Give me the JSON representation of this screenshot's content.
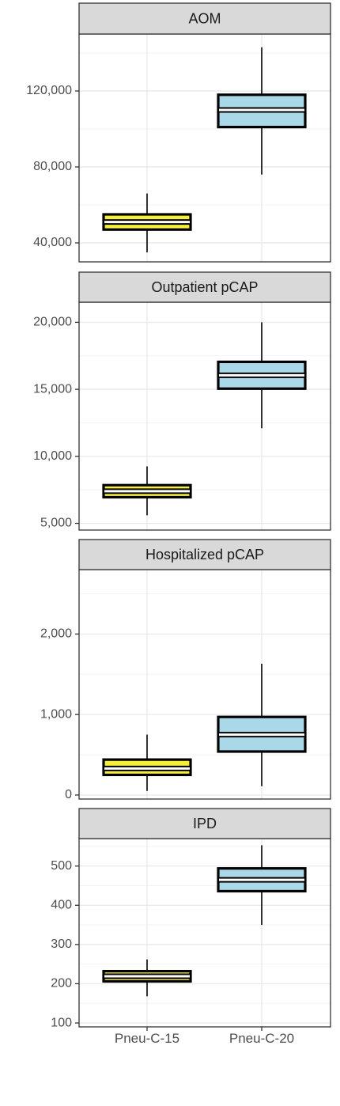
{
  "chart_data": {
    "type": "box",
    "x_categories": [
      "Pneu-C-15",
      "Pneu-C-20"
    ],
    "colors": {
      "Pneu-C-15": "#f5ef3a",
      "Pneu-C-20": "#a9d8e8",
      "outline": "#000000",
      "median": "#ffffff",
      "strip_fill": "#d9d9d9",
      "grid_major": "#ebebeb",
      "grid_minor": "#f3f3f3",
      "panel_border": "#333333"
    },
    "grid": true,
    "legend": "none",
    "facets": [
      {
        "title": "AOM",
        "ylim": [
          30000,
          150000
        ],
        "yticks": [
          40000,
          80000,
          120000
        ],
        "ytick_labels": [
          "40,000",
          "80,000",
          "120,000"
        ],
        "boxes": [
          {
            "category": "Pneu-C-15",
            "min": 35000,
            "q1": 47000,
            "median": 51000,
            "q3": 55000,
            "max": 66000
          },
          {
            "category": "Pneu-C-20",
            "min": 76000,
            "q1": 101000,
            "median": 110000,
            "q3": 118000,
            "max": 143000
          }
        ]
      },
      {
        "title": "Outpatient pCAP",
        "ylim": [
          4500,
          21500
        ],
        "yticks": [
          5000,
          10000,
          15000,
          20000
        ],
        "ytick_labels": [
          "5,000",
          "10,000",
          "15,000",
          "20,000"
        ],
        "boxes": [
          {
            "category": "Pneu-C-15",
            "min": 5600,
            "q1": 6950,
            "median": 7400,
            "q3": 7850,
            "max": 9250
          },
          {
            "category": "Pneu-C-20",
            "min": 12100,
            "q1": 15050,
            "median": 16050,
            "q3": 17050,
            "max": 20000
          }
        ]
      },
      {
        "title": "Hospitalized pCAP",
        "ylim": [
          -50,
          2800
        ],
        "yticks": [
          0,
          1000,
          2000
        ],
        "ytick_labels": [
          "0",
          "1,000",
          "2,000"
        ],
        "boxes": [
          {
            "category": "Pneu-C-15",
            "min": 50,
            "q1": 250,
            "median": 330,
            "q3": 440,
            "max": 750
          },
          {
            "category": "Pneu-C-20",
            "min": 110,
            "q1": 540,
            "median": 750,
            "q3": 970,
            "max": 1630
          }
        ]
      },
      {
        "title": "IPD",
        "ylim": [
          90,
          570
        ],
        "yticks": [
          100,
          200,
          300,
          400,
          500
        ],
        "ytick_labels": [
          "100",
          "200",
          "300",
          "400",
          "500"
        ],
        "boxes": [
          {
            "category": "Pneu-C-15",
            "min": 168,
            "q1": 206,
            "median": 219,
            "q3": 232,
            "max": 262
          },
          {
            "category": "Pneu-C-20",
            "min": 350,
            "q1": 436,
            "median": 465,
            "q3": 494,
            "max": 553
          }
        ]
      }
    ]
  }
}
